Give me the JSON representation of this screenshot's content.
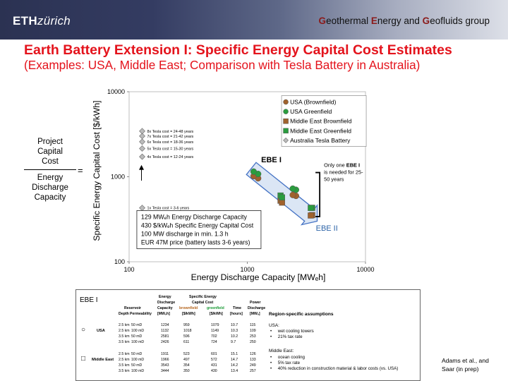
{
  "header": {
    "logo_bold": "ETH",
    "logo_italic": "zürich",
    "group_parts": [
      {
        "cap": "G",
        "rest": "eothermal "
      },
      {
        "cap": "E",
        "rest": "nergy and "
      },
      {
        "cap": "G",
        "rest": "eofluids group"
      }
    ]
  },
  "title": {
    "line1": "Earth Battery Extension I: Specific Energy Capital Cost Estimates",
    "line2": "(Examples: USA, Middle East; Comparison with Tesla Battery in Australia)"
  },
  "formula": {
    "numerator": [
      "Project",
      "Capital",
      "Cost"
    ],
    "denominator": [
      "Energy",
      "Discharge",
      "Capacity"
    ],
    "equals": "="
  },
  "chart_data": {
    "type": "scatter",
    "xscale": "log",
    "yscale": "log",
    "xlim": [
      100,
      10000
    ],
    "ylim": [
      100,
      10000
    ],
    "xticks": [
      "100",
      "1000",
      "10000"
    ],
    "yticks": [
      "100",
      "1000",
      "10000"
    ],
    "xlabel": "Energy Discharge Capacity [MWₑh]",
    "ylabel": "Specific Energy Capital Cost [$/kWh]",
    "series": [
      {
        "name": "USA (Brownfield)",
        "marker": "circle",
        "color": "#a0622d",
        "points": [
          [
            1234,
            959
          ],
          [
            1132,
            1018
          ],
          [
            2581,
            596
          ],
          [
            2426,
            611
          ]
        ]
      },
      {
        "name": "USA Greenfield",
        "marker": "circle",
        "color": "#2a9d3e",
        "points": [
          [
            1234,
            1079
          ],
          [
            1132,
            1149
          ],
          [
            2581,
            702
          ],
          [
            2426,
            724
          ]
        ]
      },
      {
        "name": "Middle East Brownfield",
        "marker": "square",
        "color": "#a0622d",
        "points": [
          [
            1911,
            523
          ],
          [
            1966,
            497
          ],
          [
            3543,
            354
          ],
          [
            3444,
            350
          ]
        ]
      },
      {
        "name": "Middle East Greenfield",
        "marker": "square",
        "color": "#2a9d3e",
        "points": [
          [
            1911,
            601
          ],
          [
            1966,
            572
          ],
          [
            3543,
            431
          ],
          [
            3444,
            430
          ]
        ]
      },
      {
        "name": "Australia Tesla Battery",
        "marker": "diamond",
        "color": "#bbbbbb",
        "points": [
          [
            129,
            430
          ],
          [
            129,
            1720
          ],
          [
            129,
            2150
          ],
          [
            129,
            2580
          ],
          [
            129,
            3010
          ],
          [
            129,
            3440
          ]
        ]
      }
    ],
    "tesla_labels": [
      {
        "y": 3440,
        "text": "8x Tesla cost = 24-48 years"
      },
      {
        "y": 3010,
        "text": "7x Tesla cost = 21-42 years"
      },
      {
        "y": 2580,
        "text": "6x Tesla cost = 18-36 years"
      },
      {
        "y": 2150,
        "text": "5x Tesla cost = 15-30 years"
      },
      {
        "y": 1720,
        "text": "4x Tesla cost = 12-24 years"
      },
      {
        "y": 430,
        "text": "1x Tesla cost = 3-6 years"
      }
    ],
    "annotations": {
      "ebe1": "EBE I",
      "ebe2": "EBE II",
      "only_one": [
        "Only one",
        "EBE I",
        "is needed for 25-",
        "50 years"
      ],
      "tesla_box": [
        "129 MWₑh Energy Discharge Capacity",
        "430 $/kWₑh Specific Energy Capital Cost",
        "100 MW discharge in min. 1.3 h",
        "EUR 47M price (battery lasts 3-6 years)"
      ]
    }
  },
  "table": {
    "label": "EBE I",
    "headers": {
      "reservoir": "Reservoir",
      "depth": "Depth",
      "permeability": "Permeability",
      "capacity": [
        "Energy",
        "Discharge",
        "Capacity",
        "[MWₑh]"
      ],
      "cost_group": [
        "Specific Energy",
        "Capital Cost"
      ],
      "brownfield": "brownfield",
      "greenfield": "greenfield",
      "unit": "[$/kWh]",
      "time": [
        "Time",
        "[hours]"
      ],
      "power": [
        "Power",
        "Discharge",
        "[MWₑ]"
      ],
      "assumptions": "Region-specific assumptions"
    },
    "groups": [
      {
        "name": "USA",
        "marker": "○",
        "rows": [
          [
            "2.5 km",
            "50 mD",
            "1234",
            "959",
            "1079",
            "10.7",
            "115"
          ],
          [
            "2.5 km",
            "100 mD",
            "1132",
            "1018",
            "1149",
            "10.3",
            "109"
          ],
          [
            "3.5 km",
            "50 mD",
            "2581",
            "596",
            "702",
            "10.2",
            "253"
          ],
          [
            "3.5 km",
            "100 mD",
            "2426",
            "611",
            "724",
            "9.7",
            "250"
          ]
        ]
      },
      {
        "name": "Middle East",
        "marker": "□",
        "rows": [
          [
            "2.5 km",
            "50 mD",
            "1911",
            "523",
            "601",
            "15.1",
            "126"
          ],
          [
            "2.5 km",
            "100 mD",
            "1966",
            "497",
            "572",
            "14.7",
            "133"
          ],
          [
            "3.5 km",
            "50 mD",
            "3543",
            "354",
            "431",
            "14.2",
            "249"
          ],
          [
            "3.5 km",
            "100 mD",
            "3444",
            "350",
            "430",
            "13.4",
            "257"
          ]
        ]
      }
    ],
    "assumptions_usa": {
      "title": "USA:",
      "items": [
        "wet cooling towers",
        "21% tax rate"
      ]
    },
    "assumptions_me": {
      "title": "Middle East:",
      "items": [
        "ocean cooling",
        "5% tax rate",
        "40% reduction in construction material & labor costs (vs. USA)"
      ]
    }
  },
  "reference": [
    "Adams et al., and",
    "Saar (in prep)"
  ]
}
